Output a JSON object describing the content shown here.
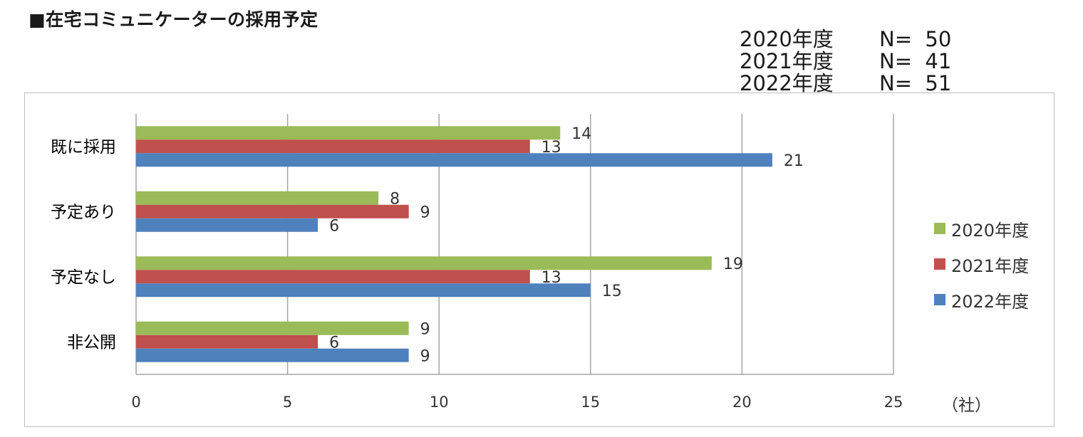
{
  "header": {
    "title": "■在宅コミュニケーターの採用予定"
  },
  "sample_sizes": [
    {
      "year": "2020年度",
      "n": "N=  50"
    },
    {
      "year": "2021年度",
      "n": "N=  41"
    },
    {
      "year": "2022年度",
      "n": "N=  51"
    }
  ],
  "unit_label": "（社）",
  "colors": {
    "2020": "#9bbb59",
    "2021": "#c0504d",
    "2022": "#4f81bd",
    "grid": "#a6a6a6"
  },
  "chart_data": {
    "type": "bar",
    "orientation": "horizontal",
    "categories": [
      "既に採用",
      "予定あり",
      "予定なし",
      "非公開"
    ],
    "series": [
      {
        "name": "2020年度",
        "values": [
          14,
          8,
          19,
          9
        ]
      },
      {
        "name": "2021年度",
        "values": [
          13,
          9,
          13,
          6
        ]
      },
      {
        "name": "2022年度",
        "values": [
          21,
          6,
          15,
          9
        ]
      }
    ],
    "xlim": [
      0,
      25
    ],
    "xticks": [
      "0",
      "5",
      "10",
      "15",
      "20",
      "25"
    ],
    "grid": true,
    "legend_position": "right"
  }
}
